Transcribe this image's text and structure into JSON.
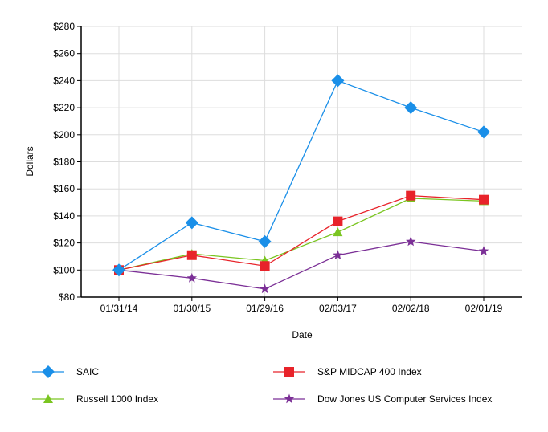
{
  "chart_data": {
    "type": "line",
    "title": "",
    "xlabel": "Date",
    "ylabel": "Dollars",
    "categories": [
      "01/31/14",
      "01/30/15",
      "01/29/16",
      "02/03/17",
      "02/02/18",
      "02/01/19"
    ],
    "ylim": [
      80,
      280
    ],
    "yticks": [
      80,
      100,
      120,
      140,
      160,
      180,
      200,
      220,
      240,
      260,
      280
    ],
    "ytick_prefix": "$",
    "grid": true,
    "legend_placement": "bottom",
    "series": [
      {
        "name": "SAIC",
        "color": "#1a8fe8",
        "marker": "diamond",
        "values": [
          100,
          135,
          121,
          240,
          220,
          202
        ]
      },
      {
        "name": "S&P MIDCAP 400 Index",
        "color": "#e8232a",
        "marker": "square",
        "values": [
          100,
          111,
          103,
          136,
          155,
          152
        ]
      },
      {
        "name": "Russell 1000 Index",
        "color": "#7ac520",
        "marker": "triangle",
        "values": [
          100,
          112,
          107,
          128,
          153,
          151
        ]
      },
      {
        "name": "Dow Jones US Computer Services Index",
        "color": "#7b2f96",
        "marker": "star",
        "values": [
          100,
          94,
          86,
          111,
          121,
          114
        ]
      }
    ]
  }
}
